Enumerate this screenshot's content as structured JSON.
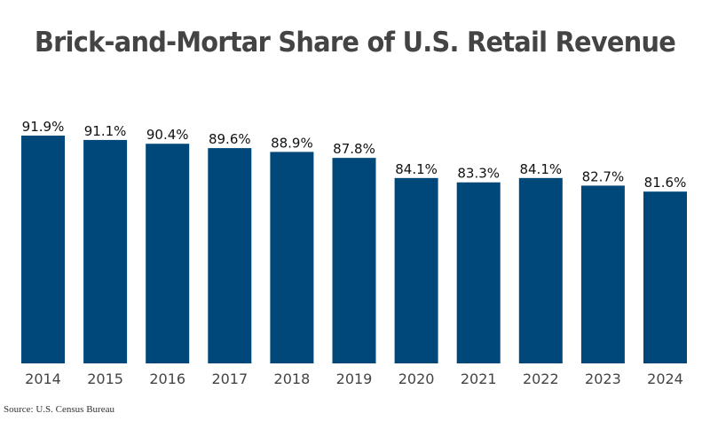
{
  "chart_data": {
    "type": "bar",
    "title": "Brick-and-Mortar Share of U.S. Retail Revenue",
    "xlabel": "",
    "ylabel": "",
    "categories": [
      "2014",
      "2015",
      "2016",
      "2017",
      "2018",
      "2019",
      "2020",
      "2021",
      "2022",
      "2023",
      "2024"
    ],
    "values": [
      91.9,
      91.1,
      90.4,
      89.6,
      88.9,
      87.8,
      84.1,
      83.3,
      84.1,
      82.7,
      81.6
    ],
    "value_labels": [
      "91.9%",
      "91.1%",
      "90.4%",
      "89.6%",
      "88.9%",
      "87.8%",
      "84.1%",
      "83.3%",
      "84.1%",
      "82.7%",
      "81.6%"
    ],
    "ylim": [
      50,
      92
    ],
    "grid": false,
    "legend": "none",
    "bar_color": "#00487a",
    "source": "Source: U.S. Census Bureau"
  }
}
